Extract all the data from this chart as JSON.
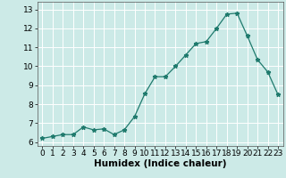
{
  "x": [
    0,
    1,
    2,
    3,
    4,
    5,
    6,
    7,
    8,
    9,
    10,
    11,
    12,
    13,
    14,
    15,
    16,
    17,
    18,
    19,
    20,
    21,
    22,
    23
  ],
  "y": [
    6.2,
    6.3,
    6.4,
    6.4,
    6.8,
    6.65,
    6.7,
    6.4,
    6.65,
    7.35,
    8.55,
    9.45,
    9.45,
    10.0,
    10.6,
    11.2,
    11.3,
    12.0,
    12.75,
    12.8,
    11.6,
    10.35,
    9.7,
    8.5
  ],
  "xlabel": "Humidex (Indice chaleur)",
  "line_color": "#1f7a6d",
  "marker": "*",
  "marker_size": 3.5,
  "bg_color": "#cceae7",
  "grid_color": "#ffffff",
  "xlim": [
    -0.5,
    23.5
  ],
  "ylim": [
    5.8,
    13.4
  ],
  "yticks": [
    6,
    7,
    8,
    9,
    10,
    11,
    12,
    13
  ],
  "xticks": [
    0,
    1,
    2,
    3,
    4,
    5,
    6,
    7,
    8,
    9,
    10,
    11,
    12,
    13,
    14,
    15,
    16,
    17,
    18,
    19,
    20,
    21,
    22,
    23
  ],
  "xlabel_fontsize": 7.5,
  "tick_fontsize": 6.5
}
